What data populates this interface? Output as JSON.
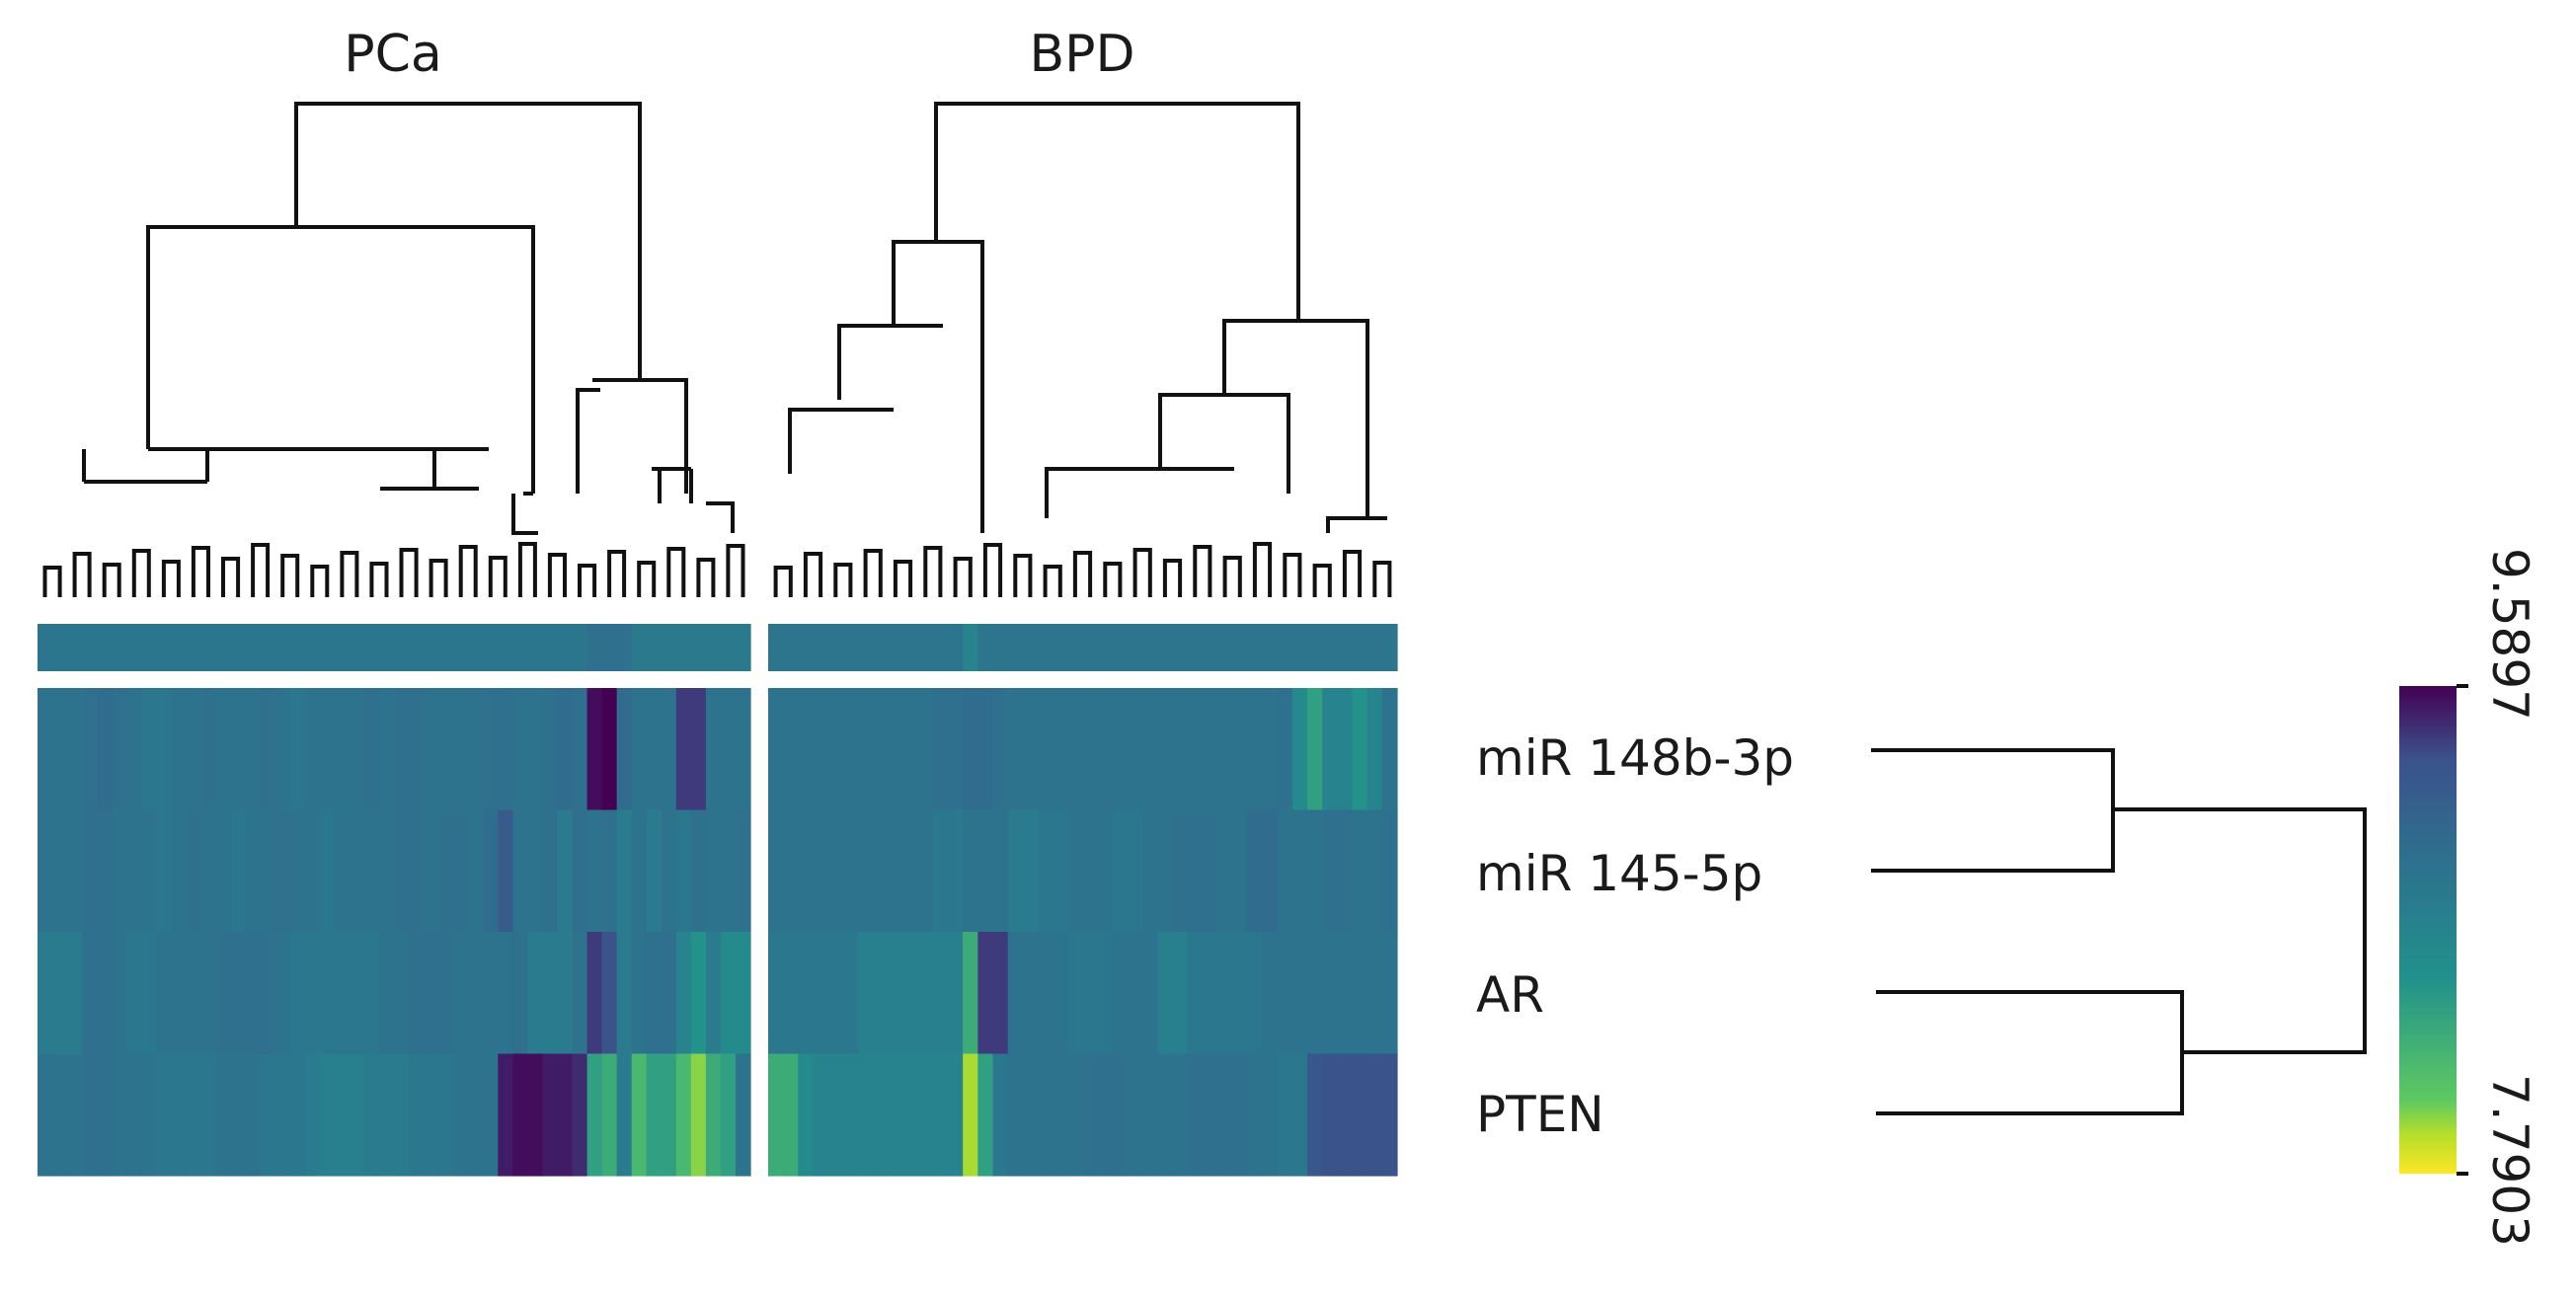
{
  "chart_data": {
    "type": "heatmap",
    "column_groups": [
      {
        "name": "PCa",
        "n_samples": 48
      },
      {
        "name": "BPD",
        "n_samples": 42
      }
    ],
    "rows": [
      "miR 148b-3p",
      "miR 145-5p",
      "AR",
      "PTEN"
    ],
    "colorbar": {
      "max_label": "9.5897",
      "min_label": "7.7903",
      "max": 9.5897,
      "min": 7.7903,
      "colormap": [
        "#fde725",
        "#5ec962",
        "#21918c",
        "#3b528b",
        "#440154"
      ]
    },
    "annotation_values": {
      "PCa": [
        8.86,
        8.86,
        8.86,
        8.86,
        8.86,
        8.86,
        8.86,
        8.86,
        8.86,
        8.86,
        8.86,
        8.86,
        8.86,
        8.86,
        8.86,
        8.86,
        8.86,
        8.86,
        8.86,
        8.86,
        8.86,
        8.86,
        8.86,
        8.86,
        8.86,
        8.86,
        8.86,
        8.86,
        8.86,
        8.86,
        8.86,
        8.86,
        8.86,
        8.86,
        8.86,
        8.86,
        8.86,
        8.94,
        8.94,
        8.94,
        8.83,
        8.83,
        8.83,
        8.83,
        8.83,
        8.83,
        8.83,
        8.83
      ],
      "BPD": [
        8.88,
        8.88,
        8.88,
        8.88,
        8.88,
        8.88,
        8.88,
        8.88,
        8.88,
        8.88,
        8.88,
        8.88,
        8.88,
        8.7,
        8.88,
        8.88,
        8.88,
        8.88,
        8.88,
        8.88,
        8.88,
        8.88,
        8.88,
        8.88,
        8.88,
        8.88,
        8.88,
        8.88,
        8.88,
        8.88,
        8.88,
        8.88,
        8.88,
        8.88,
        8.88,
        8.88,
        8.88,
        8.88,
        8.88,
        8.88,
        8.88,
        8.88
      ]
    },
    "values": {
      "PCa": [
        [
          8.9,
          8.9,
          8.9,
          8.95,
          9.0,
          8.95,
          8.9,
          8.85,
          8.85,
          8.9,
          8.9,
          8.95,
          8.9,
          8.9,
          8.9,
          8.95,
          8.9,
          8.85,
          8.9,
          8.9,
          8.9,
          8.9,
          8.95,
          8.9,
          8.95,
          8.95,
          8.9,
          8.9,
          8.9,
          8.9,
          8.95,
          8.95,
          8.9,
          8.9,
          8.95,
          9.0,
          8.95,
          9.55,
          9.6,
          9.0,
          8.9,
          8.9,
          8.9,
          9.4,
          9.4,
          8.9,
          8.9,
          8.9
        ],
        [
          8.9,
          8.9,
          8.9,
          8.95,
          8.95,
          8.9,
          8.9,
          8.9,
          8.85,
          8.9,
          8.95,
          8.9,
          8.9,
          8.85,
          8.9,
          8.9,
          8.95,
          8.9,
          8.9,
          8.85,
          8.9,
          8.9,
          8.9,
          8.9,
          8.95,
          8.95,
          8.9,
          8.95,
          8.95,
          8.9,
          9.0,
          9.2,
          8.9,
          8.9,
          8.95,
          8.8,
          8.95,
          8.9,
          8.95,
          8.8,
          8.9,
          8.8,
          8.9,
          8.85,
          8.95,
          8.9,
          8.9,
          8.95
        ],
        [
          8.8,
          8.8,
          8.8,
          8.95,
          8.95,
          8.9,
          8.85,
          8.85,
          8.9,
          8.9,
          8.9,
          8.9,
          8.95,
          8.95,
          8.95,
          8.95,
          8.9,
          8.85,
          8.85,
          8.85,
          8.85,
          8.85,
          8.85,
          8.9,
          8.9,
          8.95,
          8.95,
          8.95,
          8.9,
          8.9,
          8.9,
          8.9,
          8.95,
          8.8,
          8.8,
          8.8,
          8.9,
          9.4,
          9.3,
          8.8,
          8.9,
          8.95,
          8.95,
          8.7,
          8.5,
          8.8,
          8.6,
          8.6
        ],
        [
          8.9,
          8.9,
          8.9,
          8.95,
          8.95,
          8.9,
          8.9,
          8.9,
          8.85,
          8.85,
          8.85,
          8.85,
          8.9,
          8.9,
          8.9,
          8.85,
          8.85,
          8.85,
          8.8,
          8.75,
          8.75,
          8.75,
          8.8,
          8.8,
          8.8,
          8.85,
          8.85,
          8.85,
          8.9,
          8.9,
          8.9,
          9.5,
          9.55,
          9.55,
          9.5,
          9.5,
          9.45,
          8.4,
          8.3,
          8.8,
          8.2,
          8.4,
          8.4,
          8.2,
          8.0,
          8.3,
          8.4,
          8.9
        ]
      ],
      "BPD": [
        [
          8.9,
          8.9,
          8.9,
          8.9,
          8.9,
          8.9,
          8.9,
          8.9,
          8.9,
          8.9,
          8.9,
          8.95,
          8.95,
          9.0,
          9.0,
          8.95,
          8.9,
          8.9,
          8.9,
          8.9,
          8.9,
          8.9,
          8.9,
          8.9,
          8.9,
          8.9,
          8.9,
          8.9,
          8.9,
          8.9,
          8.9,
          8.9,
          8.9,
          8.9,
          8.95,
          8.6,
          8.4,
          8.7,
          8.7,
          8.5,
          8.7,
          8.9
        ],
        [
          8.9,
          8.9,
          8.9,
          8.9,
          8.9,
          8.9,
          8.9,
          8.9,
          8.9,
          8.9,
          8.9,
          8.85,
          8.85,
          8.9,
          8.9,
          8.9,
          8.8,
          8.8,
          8.85,
          8.85,
          8.9,
          8.9,
          8.9,
          8.85,
          8.85,
          8.9,
          8.9,
          8.95,
          8.95,
          8.95,
          8.9,
          8.9,
          9.0,
          9.0,
          8.9,
          8.9,
          8.9,
          8.95,
          8.95,
          8.9,
          8.9,
          8.95
        ],
        [
          8.85,
          8.85,
          8.85,
          8.85,
          8.85,
          8.85,
          8.75,
          8.75,
          8.75,
          8.75,
          8.75,
          8.75,
          8.75,
          8.3,
          9.4,
          9.4,
          8.9,
          8.9,
          8.9,
          8.9,
          8.85,
          8.85,
          8.85,
          8.9,
          8.9,
          8.9,
          8.75,
          8.75,
          8.85,
          8.85,
          8.85,
          8.85,
          8.85,
          8.9,
          8.9,
          8.9,
          8.9,
          8.9,
          8.9,
          8.9,
          8.9,
          8.9
        ],
        [
          8.3,
          8.3,
          8.6,
          8.7,
          8.7,
          8.7,
          8.7,
          8.7,
          8.7,
          8.7,
          8.7,
          8.7,
          8.7,
          7.95,
          8.4,
          8.85,
          8.9,
          8.9,
          8.9,
          8.9,
          8.9,
          8.95,
          8.95,
          8.95,
          8.9,
          8.9,
          8.9,
          8.9,
          8.95,
          8.95,
          8.95,
          8.95,
          8.9,
          8.9,
          8.85,
          8.85,
          9.25,
          9.3,
          9.3,
          9.3,
          9.3,
          9.3
        ]
      ]
    }
  }
}
